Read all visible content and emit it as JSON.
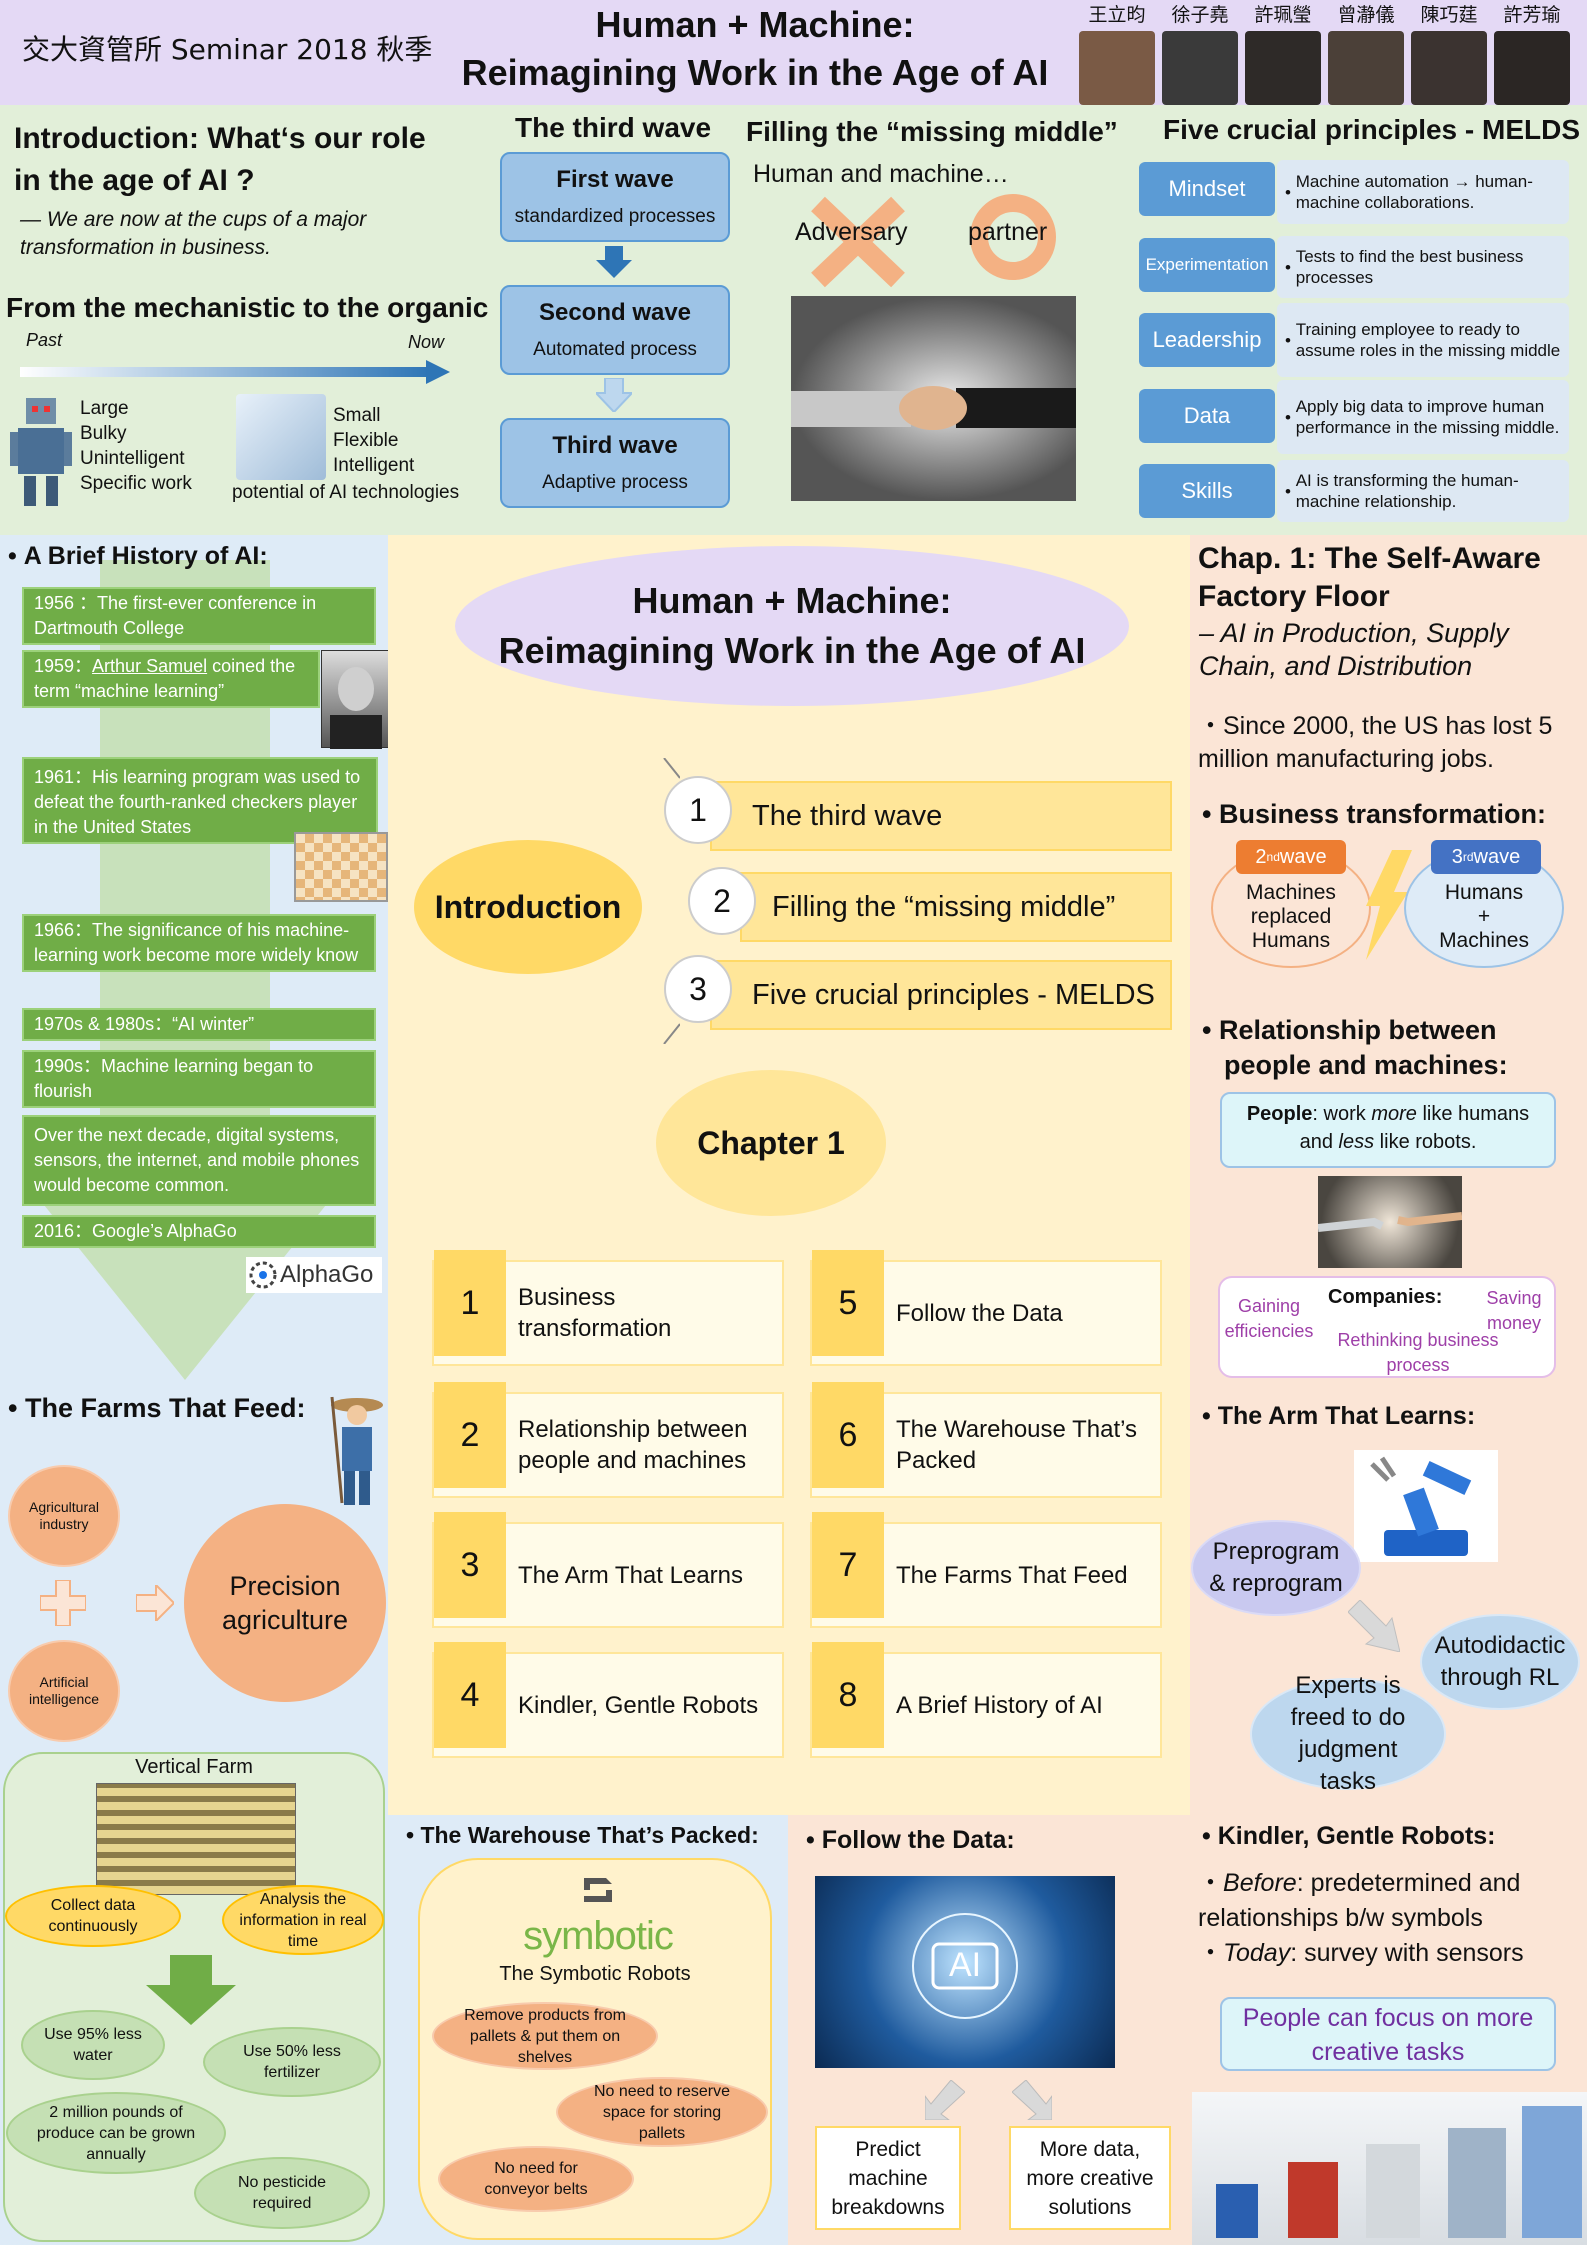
{
  "header": {
    "seminar": "交大資管所 Seminar 2018 秋季",
    "title_line1": "Human + Machine:",
    "title_line2": "Reimagining Work in the Age of AI",
    "authors": [
      "王立昀",
      "徐子堯",
      "許珮瑩",
      "曾瀞儀",
      "陳巧莛",
      "許芳瑜"
    ]
  },
  "intro": {
    "heading_line1": "Introduction: What‘s our role",
    "heading_line2": "in the age of AI ?",
    "quote_line1": "— We are now at the cups of a major",
    "quote_line2": "transformation in business.",
    "organic_title": "From the mechanistic to the organic",
    "past": "Past",
    "now": "Now",
    "robot_desc": [
      "Large",
      "Bulky",
      "Unintelligent",
      "Specific work"
    ],
    "ai_desc": [
      "Small",
      "Flexible",
      "Intelligent"
    ],
    "ai_caption": "potential of AI technologies"
  },
  "waves": {
    "title": "The third wave",
    "items": [
      {
        "title": "First wave",
        "sub": "standardized processes"
      },
      {
        "title": "Second wave",
        "sub": "Automated process"
      },
      {
        "title": "Third wave",
        "sub": "Adaptive process"
      }
    ]
  },
  "middle": {
    "title": "Filling the “missing middle”",
    "sub": "Human and machine…",
    "adversary": "Adversary",
    "partner": "partner"
  },
  "melds": {
    "title": "Five crucial principles - MELDS",
    "items": [
      {
        "tag": "Mindset",
        "desc": "Machine automation → human-machine collaborations."
      },
      {
        "tag": "Experimentation",
        "desc": "Tests to find the best business processes"
      },
      {
        "tag": "Leadership",
        "desc": "Training employee to ready to assume roles in the missing middle"
      },
      {
        "tag": "Data",
        "desc": "Apply big data to improve human performance in the missing middle."
      },
      {
        "tag": "Skills",
        "desc": "AI is  transforming the human-machine relationship."
      }
    ]
  },
  "history": {
    "title": "A Brief History of AI:",
    "items": [
      "1956 ：The first-ever conference in Dartmouth College",
      "1961：His learning program was used to defeat the fourth-ranked checkers player in the United States",
      "1966：The significance of his machine-learning work become more widely know",
      "1970s & 1980s：“AI winter”",
      "1990s：Machine learning began to flourish",
      "Over the next decade, digital systems, sensors, the internet, and mobile phones would become common.",
      "2016：Google’s AlphaGo"
    ],
    "item1959_pre": "1959：",
    "item1959_name": "Arthur Samuel",
    "item1959_post": " coined the term “machine learning”",
    "alphago": "AlphaGo"
  },
  "farms": {
    "title": "The Farms That Feed:",
    "agri": "Agricultural industry",
    "ai": "Artificial intelligence",
    "precision": "Precision agriculture",
    "vertical": "Vertical Farm",
    "collect": "Collect data continuously",
    "analysis": "Analysis the information in real time",
    "water": "Use 95% less water",
    "fert": "Use 50% less fertilizer",
    "produce": "2 million pounds of produce can be grown annually",
    "pest": "No pesticide required"
  },
  "center": {
    "title_line1": "Human + Machine:",
    "title_line2": "Reimagining Work in the Age of AI",
    "intro_label": "Introduction",
    "intro_items": [
      {
        "n": "1",
        "t": "The third wave"
      },
      {
        "n": "2",
        "t": "Filling the “missing middle”"
      },
      {
        "n": "3",
        "t": "Five crucial principles - MELDS"
      }
    ],
    "chapter": "Chapter 1",
    "cards": [
      {
        "n": "1",
        "t": "Business transformation"
      },
      {
        "n": "2",
        "t": "Relationship between people and machines"
      },
      {
        "n": "3",
        "t": "The Arm That Learns"
      },
      {
        "n": "4",
        "t": "Kindler, Gentle Robots"
      },
      {
        "n": "5",
        "t": "Follow the Data"
      },
      {
        "n": "6",
        "t": "The Warehouse That’s Packed"
      },
      {
        "n": "7",
        "t": "The Farms That Feed"
      },
      {
        "n": "8",
        "t": "A Brief History of AI"
      }
    ]
  },
  "warehouse": {
    "title": "The Warehouse That’s Packed:",
    "brand": "symbotic",
    "robots": "The Symbotic Robots",
    "remove": "Remove products from pallets & put them on shelves",
    "reserve": "No need to reserve space for storing pallets",
    "conveyor": "No need for conveyor belts"
  },
  "data": {
    "title": "Follow the Data:",
    "ai": "AI",
    "predict": "Predict machine breakdowns",
    "more": "More data, more creative solutions"
  },
  "chap": {
    "title_line1": "Chap. 1: The Self-Aware",
    "title_line2": "Factory Floor",
    "sub_line1": "– AI in Production, Supply",
    "sub_line2": "Chain, and Distribution",
    "since": "・Since 2000, the US has lost 5 million manufacturing jobs.",
    "biz_title": "Business transformation:",
    "wave2_pre": "2",
    "wave2_sup": "nd",
    "wave2_post": " wave",
    "wave2_body": "Machines replaced Humans",
    "wave3_pre": "3",
    "wave3_sup": "rd",
    "wave3_post": " wave",
    "wave3_body": "Humans + Machines",
    "rel_title": "Relationship between people and machines:",
    "people_b": "People",
    "people_1": ": work ",
    "people_more": "more",
    "people_2": " like humans and ",
    "people_less": "less",
    "people_3": " like robots.",
    "companies": "Companies:",
    "gaining": "Gaining efficiencies",
    "saving": "Saving money",
    "rethink": "Rethinking business process",
    "arm_title": "The Arm That Learns:",
    "preprogram": "Preprogram & reprogram",
    "autodidactic": "Autodidactic through RL",
    "experts": "Experts is freed to do judgment tasks",
    "kind_title": "Kindler, Gentle Robots:",
    "before_i": "Before",
    "before_t": ": predetermined and relationships b/w symbols",
    "today_i": "Today",
    "today_t": ": survey with sensors",
    "focus": "People can focus on more creative tasks"
  },
  "colors": {
    "header": "#e4d9f5",
    "intro": "#e2efd9",
    "history": "#deebf7",
    "center": "#fff2cc",
    "right": "#fbe5d6"
  }
}
